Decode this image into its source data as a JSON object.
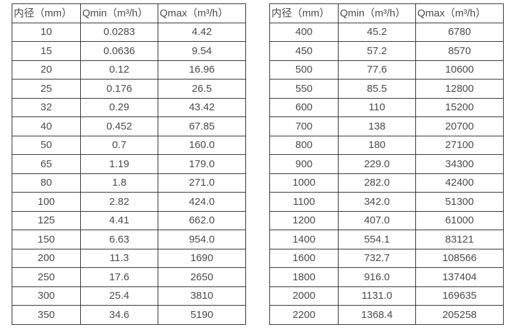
{
  "colors": {
    "background": "#ffffff",
    "border": "#333333",
    "text": "#4a4a4a"
  },
  "tables": [
    {
      "name": "flow-spec-table-left",
      "headers": [
        "内径（mm）",
        "Qmin（m³/h）",
        "Qmax（m³/h）"
      ],
      "rows": [
        [
          "10",
          "0.0283",
          "4.42"
        ],
        [
          "15",
          "0.0636",
          "9.54"
        ],
        [
          "20",
          "0.12",
          "16.96"
        ],
        [
          "25",
          "0.176",
          "26.5"
        ],
        [
          "32",
          "0.29",
          "43.42"
        ],
        [
          "40",
          "0.452",
          "67.85"
        ],
        [
          "50",
          "0.7",
          "160.0"
        ],
        [
          "65",
          "1.19",
          "179.0"
        ],
        [
          "80",
          "1.8",
          "271.0"
        ],
        [
          "100",
          "2.82",
          "424.0"
        ],
        [
          "125",
          "4.41",
          "662.0"
        ],
        [
          "150",
          "6.63",
          "954.0"
        ],
        [
          "200",
          "11.3",
          "1690"
        ],
        [
          "250",
          "17.6",
          "2650"
        ],
        [
          "300",
          "25.4",
          "3810"
        ],
        [
          "350",
          "34.6",
          "5190"
        ]
      ]
    },
    {
      "name": "flow-spec-table-right",
      "headers": [
        "内径（mm）",
        "Qmin（m³/h）",
        "Qmax（m³/h）"
      ],
      "rows": [
        [
          "400",
          "45.2",
          "6780"
        ],
        [
          "450",
          "57.2",
          "8570"
        ],
        [
          "500",
          "77.6",
          "10600"
        ],
        [
          "550",
          "85.5",
          "12800"
        ],
        [
          "600",
          "110",
          "15200"
        ],
        [
          "700",
          "138",
          "20700"
        ],
        [
          "800",
          "180",
          "27100"
        ],
        [
          "900",
          "229.0",
          "34300"
        ],
        [
          "1000",
          "282.0",
          "42400"
        ],
        [
          "1100",
          "342.0",
          "51300"
        ],
        [
          "1200",
          "407.0",
          "61000"
        ],
        [
          "1400",
          "554.1",
          "83121"
        ],
        [
          "1600",
          "732.7",
          "108566"
        ],
        [
          "1800",
          "916.0",
          "137404"
        ],
        [
          "2000",
          "1131.0",
          "169635"
        ],
        [
          "2200",
          "1368.4",
          "205258"
        ]
      ]
    }
  ]
}
